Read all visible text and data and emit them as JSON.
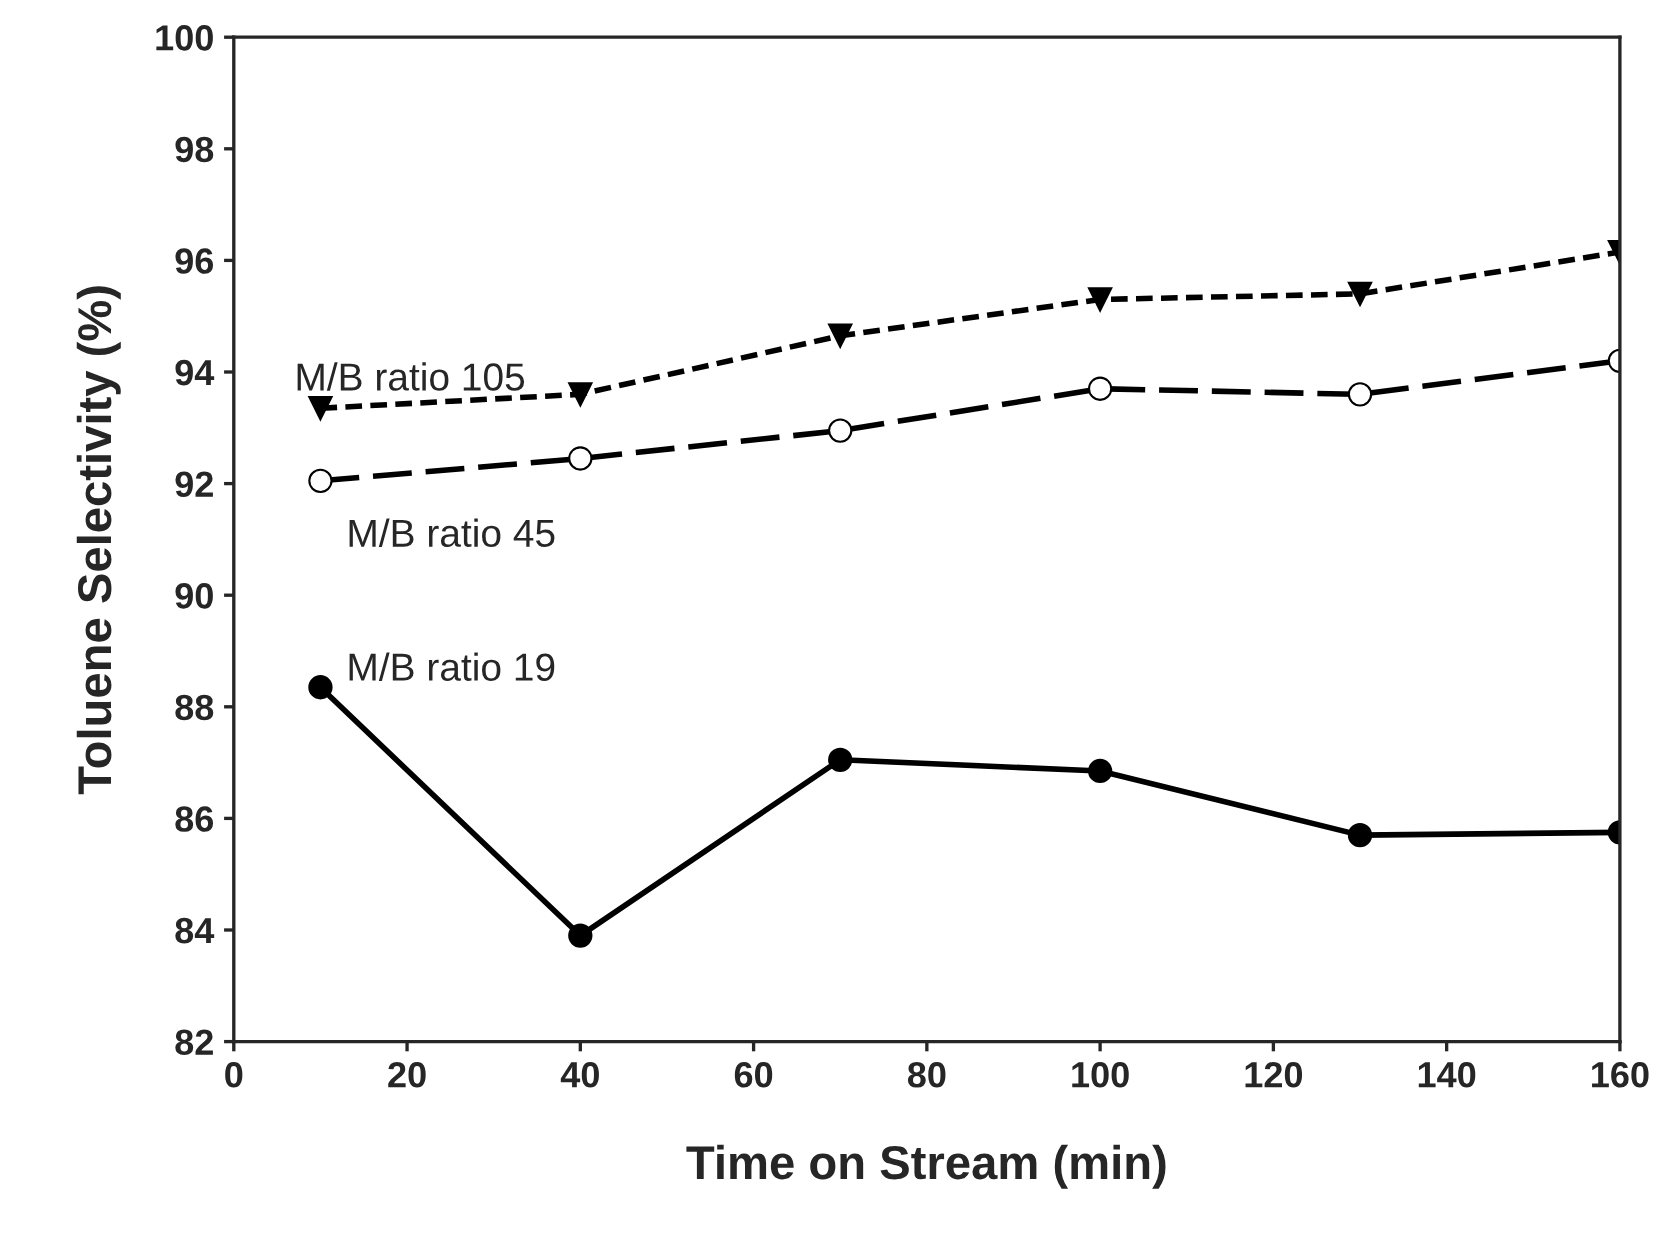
{
  "chart_data": {
    "type": "line",
    "xlabel": "Time on Stream (min)",
    "ylabel": "Toluene Selectivity (%)",
    "x": [
      10,
      40,
      70,
      100,
      130,
      160
    ],
    "series": [
      {
        "name": "M/B ratio 105",
        "color": "#000000",
        "values": [
          93.35,
          93.6,
          94.65,
          95.3,
          95.4,
          96.15
        ],
        "marker": "triangle",
        "line_style": "dashed"
      },
      {
        "name": "M/B ratio 45",
        "color": "#000000",
        "values": [
          92.05,
          92.45,
          92.95,
          93.7,
          93.6,
          94.2
        ],
        "marker": "circle",
        "line_style": "dashed"
      },
      {
        "name": "M/B ratio 19",
        "color": "#000000",
        "values": [
          88.35,
          83.9,
          87.05,
          86.85,
          85.7,
          85.75
        ],
        "marker": "circle",
        "line_style": "solid"
      }
    ],
    "xlim": [
      0,
      160
    ],
    "xticks": [
      0,
      20,
      40,
      60,
      80,
      100,
      120,
      140,
      160
    ],
    "ylim": [
      82,
      100
    ],
    "yticks": [
      82,
      84,
      86,
      88,
      90,
      92,
      94,
      96,
      98,
      100
    ],
    "grid": false,
    "legend": false
  }
}
